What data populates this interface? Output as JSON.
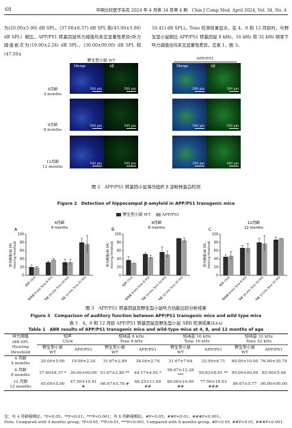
{
  "header": {
    "page_number": "68",
    "journal": "中国比较医学杂志 2024 年 4 月第 34 卷第 4 期　Chin J Comp Med, April 2024, Vol. 34, No. 4"
  },
  "body_text": {
    "left_column": "为(20.00±5.00) dB SPL、(37.00±8.37) dB SPL 和(45.00±5.00) dB SPL）相比，APP/PS1 转基因鼠听力阈值均未见显著性差异(听力阈值依次为(19.00±2.24) dB SPL、(30.00±00.00) dB SPL 和(47.50±",
    "right_column": "10.41) dB SPL)。Tone 检测结果显示，在 4、8 和 12 月龄时，与野生型小鼠相比 APP/PS1 转基因鼠 8 kHz、16 kHz 和 32 kHz 频率下听力阈值也均未见显著性差异，见表 1，图 3。"
  },
  "figure2": {
    "group_wt": "野生型小鼠 WT",
    "group_tg": "APP/PS1",
    "col_merge": "Merge",
    "col_ab": "Aβ",
    "scale": "500 μm",
    "rows": [
      {
        "cn": "4月龄",
        "en": "4 months"
      },
      {
        "cn": "8月龄",
        "en": "8 months"
      },
      {
        "cn": "12月龄",
        "en": "12 months"
      }
    ],
    "caption_cn": "图 2　APP/PS1 转基因小鼠海马组织 β 淀粉样蛋白检测",
    "caption_en": "Figure 2　Detection of hippocampal β-amyloid in APP/PS1 transgenic mice"
  },
  "figure3": {
    "legend_wt": "野生型小鼠 WT",
    "legend_tg": "APP/PS1",
    "colors": {
      "wt": "#2b2b2b",
      "tg": "#9e9e9e"
    },
    "ylabel_cn": "听力阈值/dB SPL",
    "ylabel_en": "Hearing threshold",
    "caption_cn": "图 3　APP/PS1 转基因鼠及野生型小鼠听力功能比较分析结果",
    "caption_en": "Figure 3　Comparison of auditory function between APP/PS1 transgenic mice and wild type mice"
  },
  "chart_data": [
    {
      "type": "bar",
      "panel": "A",
      "title": "4月龄",
      "subtitle": "4 months",
      "categories": [
        "短声 Click",
        "短纯音 8 kHz Tone 8 kHz",
        "短纯音 16 kHz Tone 16 kHz",
        "短纯音 32 kHz Tone 32 kHz"
      ],
      "series": [
        {
          "name": "野生型小鼠 WT",
          "values": [
            20.0,
            31.67,
            31.67,
            80.0
          ],
          "errors": [
            5.0,
            2.89,
            7.64,
            10.0
          ]
        },
        {
          "name": "APP/PS1",
          "values": [
            19.0,
            38.0,
            32.0,
            76.0
          ],
          "errors": [
            2.24,
            2.74,
            6.71,
            20.74
          ]
        }
      ],
      "ylim": [
        0,
        100
      ],
      "yticks": [
        0,
        20,
        40,
        60,
        80,
        100
      ]
    },
    {
      "type": "bar",
      "panel": "B",
      "title": "8月龄",
      "subtitle": "8 months",
      "categories": [
        "短声 Click",
        "短纯音 8 kHz Tone 8 kHz",
        "短纯音 16 kHz Tone 16 kHz",
        "短纯音 32 kHz Tone 32 kHz"
      ],
      "series": [
        {
          "name": "野生型小鼠 WT",
          "values": [
            37.0,
            51.67,
            56.67,
            90.0
          ],
          "errors": [
            8.37,
            2.89,
            12.28,
            0.0
          ]
        },
        {
          "name": "APP/PS1",
          "values": [
            30.0,
            44.17,
            50.83,
            85.0
          ],
          "errors": [
            0.0,
            4.92,
            8.01,
            5.48
          ]
        }
      ],
      "ylim": [
        0,
        100
      ],
      "yticks": [
        0,
        20,
        40,
        60,
        80,
        100
      ]
    },
    {
      "type": "bar",
      "panel": "C",
      "title": "12月龄",
      "subtitle": "12 months",
      "categories": [
        "短声 Click",
        "短纯音 8 kHz Tone 8 kHz",
        "短纯音 16 kHz Tone 16 kHz",
        "短纯音 32 kHz Tone 32 kHz"
      ],
      "series": [
        {
          "name": "野生型小鼠 WT",
          "values": [
            45.0,
            66.67,
            80.0,
            86.67
          ],
          "errors": [
            5.0,
            5.78,
            10.0,
            5.77
          ]
        },
        {
          "name": "APP/PS1",
          "values": [
            47.5,
            66.25,
            77.5,
            90.0
          ],
          "errors": [
            10.41,
            11.09,
            18.93,
            0.0
          ]
        }
      ],
      "ylim": [
        0,
        100
      ],
      "yticks": [
        0,
        20,
        40,
        60,
        80,
        100
      ]
    }
  ],
  "table1": {
    "title_cn": "表 1　4、8 和 12 月龄 APP/PS1 转基因鼠及野生型小鼠 ABR 检测结果(x̄±s)",
    "title_en": "Table 1　ABR results of APP/PS1 transgenic mice and wild-type mice at 4, 8, and 12 months of age",
    "corner": [
      "听力阈值",
      "/dB SPL",
      "Hearing",
      "threshold"
    ],
    "groups": [
      {
        "cn": "短声",
        "en": "Click"
      },
      {
        "cn": "短纯音 8 kHz",
        "en": "Tone 8 kHz"
      },
      {
        "cn": "短纯音 16 kHz",
        "en": "Tone 16 kHz"
      },
      {
        "cn": "短纯音 32 kHz",
        "en": "Tone 32 kHz"
      }
    ],
    "sub_wt": [
      "野生型小鼠",
      "WT"
    ],
    "sub_tg": "APP/PS1",
    "rows": [
      {
        "label": [
          "4 月龄",
          "4 months"
        ],
        "cells": [
          "20.00±5.00",
          "19.00±2.24",
          "31.67±2.89",
          "38.00±2.74",
          "31.67±7.64",
          "32.00±6.71",
          "80.00±10.00",
          "76.00±20.74"
        ]
      },
      {
        "label": [
          "8 月龄",
          "8 months"
        ],
        "cells": [
          "37.00±8.37 *",
          "30.00±00.00",
          "51.67±2.89 **",
          "44.17±4.92 *",
          "56.67±12.28 ***",
          "50.83±8.01 **",
          "90.00±00.00",
          "85.00±5.48"
        ]
      },
      {
        "label": [
          "12 月龄",
          "12 months"
        ],
        "cells": [
          "45.00±5.00",
          "47.50±10.41 #",
          "66.67±5.78 #",
          "66.25±11.09 ##",
          "80.00±10.00 ##",
          "77.50±18.93 ###",
          "86.67±5.77",
          "90.00±00.00"
        ]
      }
    ],
    "note_cn": "注：与 4 月龄组相比，*P<0.05，**P<0.01，***P<0.001；与 8 月龄组相比，#P<0.05，##P<0.01，###P<0.001。",
    "note_en": "Note. Compared with 4 months group, *P<0.05, **P<0.01, ***P<0.001. Compared with 8 months group, #P<0.05, ##P<0.01, ###P<0.001."
  }
}
